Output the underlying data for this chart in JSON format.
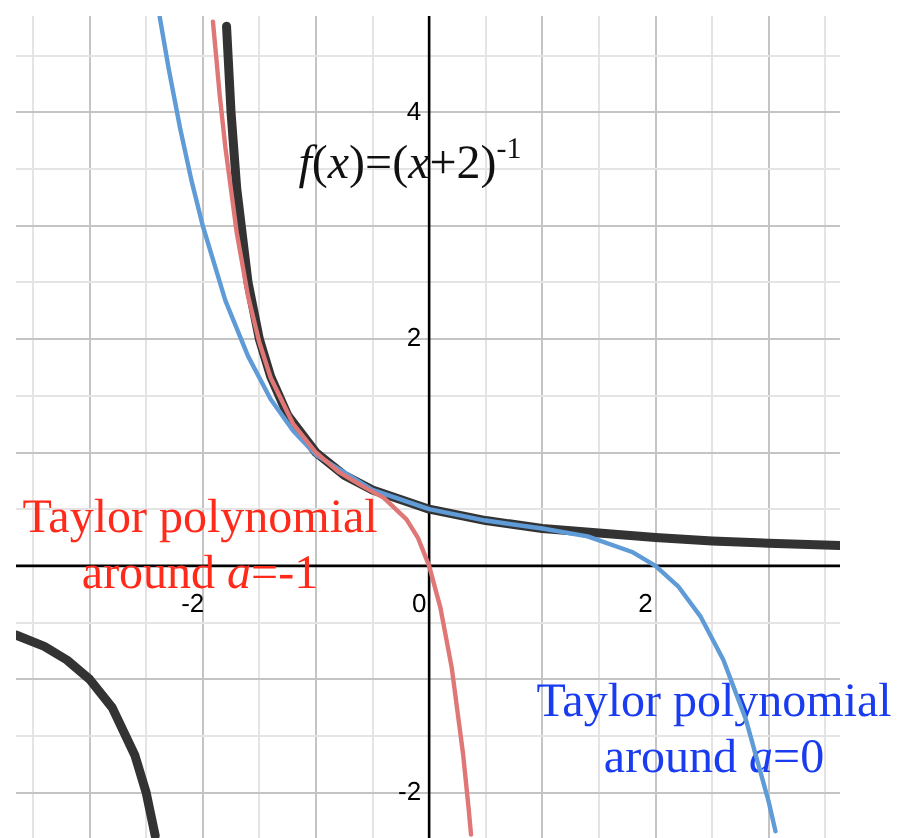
{
  "chart_data": {
    "type": "line",
    "xlim": [
      -3.65,
      3.63
    ],
    "ylim": [
      -2.4,
      4.85
    ],
    "xticks": [
      {
        "value": -3.5,
        "label": null
      },
      {
        "value": -3,
        "label": null
      },
      {
        "value": -2.5,
        "label": null
      },
      -2,
      {
        "value": -1.5,
        "label": null
      },
      {
        "value": -1,
        "label": null
      },
      {
        "value": -0.5,
        "label": null
      },
      0,
      {
        "value": 0.5,
        "label": null
      },
      {
        "value": 1,
        "label": null
      },
      {
        "value": 1.5,
        "label": null
      },
      2,
      {
        "value": 2.5,
        "label": null
      },
      {
        "value": 3,
        "label": null
      },
      {
        "value": 3.5,
        "label": null
      }
    ],
    "yticks": [
      -2,
      {
        "value": -1.5,
        "label": null
      },
      {
        "value": -1,
        "label": null
      },
      {
        "value": -0.5,
        "label": null
      },
      {
        "value": 0,
        "label": null
      },
      {
        "value": 0.5,
        "label": null
      },
      {
        "value": 1,
        "label": null
      },
      {
        "value": 1.5,
        "label": null
      },
      2,
      {
        "value": 2.5,
        "label": null
      },
      {
        "value": 3,
        "label": null
      },
      {
        "value": 3.5,
        "label": null
      },
      4,
      {
        "value": 4.5,
        "label": null
      }
    ],
    "grid": true,
    "legend": false,
    "marker": "none",
    "line_style": "solid",
    "series": [
      {
        "name": "Taylor polynomial around a=-1",
        "color": "#e07777",
        "x": [
          -1.91,
          -1.85,
          -1.8,
          -1.7,
          -1.6,
          -1.5,
          -1.4,
          -1.2,
          -1,
          -0.8,
          -0.6,
          -0.4,
          -0.2,
          -0.1,
          0,
          0.1,
          0.2,
          0.3,
          0.35,
          0.37
        ],
        "values": [
          4.8,
          4.15,
          3.69,
          2.94,
          2.38,
          1.97,
          1.66,
          1.25,
          1,
          0.83,
          0.71,
          0.6,
          0.41,
          0.25,
          0,
          -0.37,
          -0.9,
          -1.66,
          -2.15,
          -2.37
        ]
      },
      {
        "name": "Taylor polynomial around a=0",
        "color": "#5f9bd6",
        "x": [
          -2.38,
          -2.3,
          -2.2,
          -2.1,
          -2,
          -1.8,
          -1.6,
          -1.4,
          -1.2,
          -1,
          -0.5,
          0,
          0.5,
          1,
          1.4,
          1.8,
          2,
          2.2,
          2.4,
          2.6,
          2.8,
          3,
          3.06
        ],
        "values": [
          4.84,
          4.38,
          3.86,
          3.4,
          3,
          2.34,
          1.85,
          1.47,
          1.19,
          0.98,
          0.67,
          0.5,
          0.4,
          0.33,
          0.26,
          0.12,
          0,
          -0.18,
          -0.45,
          -0.83,
          -1.36,
          -2.08,
          -2.34
        ]
      },
      {
        "name": "f(x)=(x+2)$^{-1}$",
        "color": "#333333",
        "x": [
          -3.65,
          -3.4,
          -3.2,
          -3,
          -2.8,
          -2.6,
          -2.5,
          -2.42,
          -2,
          -1.79,
          -1.75,
          -1.7,
          -1.6,
          -1.5,
          -1.4,
          -1.25,
          -1,
          -0.75,
          -0.5,
          0,
          0.5,
          1,
          1.5,
          2,
          2.5,
          3,
          3.63
        ],
        "values": [
          -0.61,
          -0.71,
          -0.83,
          -1,
          -1.25,
          -1.67,
          -2,
          -2.38,
          null,
          4.76,
          4,
          3.33,
          2.5,
          2,
          1.67,
          1.33,
          1,
          0.8,
          0.67,
          0.5,
          0.4,
          0.33,
          0.29,
          0.25,
          0.22,
          0.2,
          0.18
        ]
      }
    ]
  }
}
